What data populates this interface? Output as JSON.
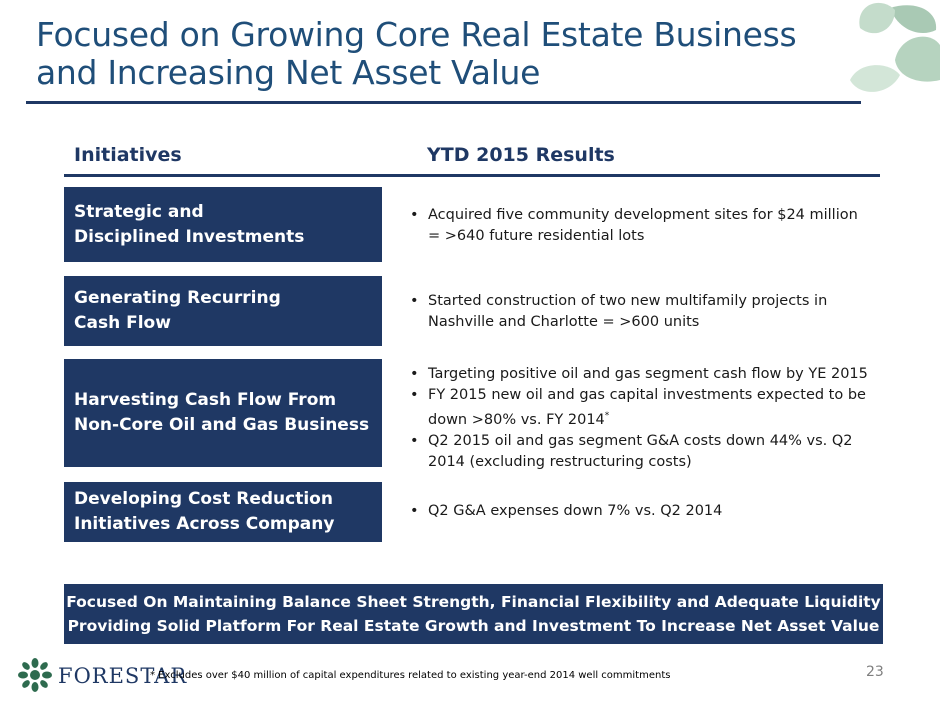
{
  "title": {
    "line1": "Focused on Growing Core Real Estate Business",
    "line2": "and Increasing Net Asset Value"
  },
  "headers": {
    "initiatives": "Initiatives",
    "results": "YTD 2015 Results"
  },
  "rows": [
    {
      "initiative": [
        "Strategic and",
        "Disciplined Investments"
      ],
      "results": [
        [
          "Acquired five community development sites for $24 million",
          "= >640 future residential lots"
        ]
      ]
    },
    {
      "initiative": [
        "Generating Recurring",
        "Cash Flow"
      ],
      "results": [
        [
          "Started construction of two new multifamily projects in",
          "Nashville and Charlotte = >600 units"
        ]
      ]
    },
    {
      "initiative": [
        "Harvesting Cash Flow From",
        "Non-Core Oil and Gas Business"
      ],
      "results": [
        [
          "Targeting positive oil and gas segment cash flow by YE 2015"
        ],
        [
          "FY 2015 new oil and gas capital investments expected to be",
          "down >80% vs. FY 2014"
        ],
        [
          "Q2 2015 oil and gas segment G&A costs down 44% vs. Q2",
          "2014 (excluding restructuring costs)"
        ]
      ],
      "footnote_marker": "*"
    },
    {
      "initiative": [
        "Developing Cost Reduction",
        "Initiatives Across Company"
      ],
      "results": [
        [
          "Q2 G&A expenses down 7% vs. Q2 2014"
        ]
      ]
    }
  ],
  "banner": {
    "line1": "Focused On Maintaining Balance Sheet Strength, Financial Flexibility and Adequate Liquidity",
    "line2": "Providing Solid Platform For Real Estate Growth and Investment To Increase Net Asset Value"
  },
  "logo": {
    "text": "FORESTAR",
    "icon": "tree-logo-icon"
  },
  "footnote": "* Excludes over $40 million of capital expenditures related to existing year-end 2014 well commitments",
  "page_number": "23",
  "colors": {
    "navy": "#1f3864",
    "title_blue": "#1f4e79",
    "leaf_green": "#8fb8a0"
  }
}
